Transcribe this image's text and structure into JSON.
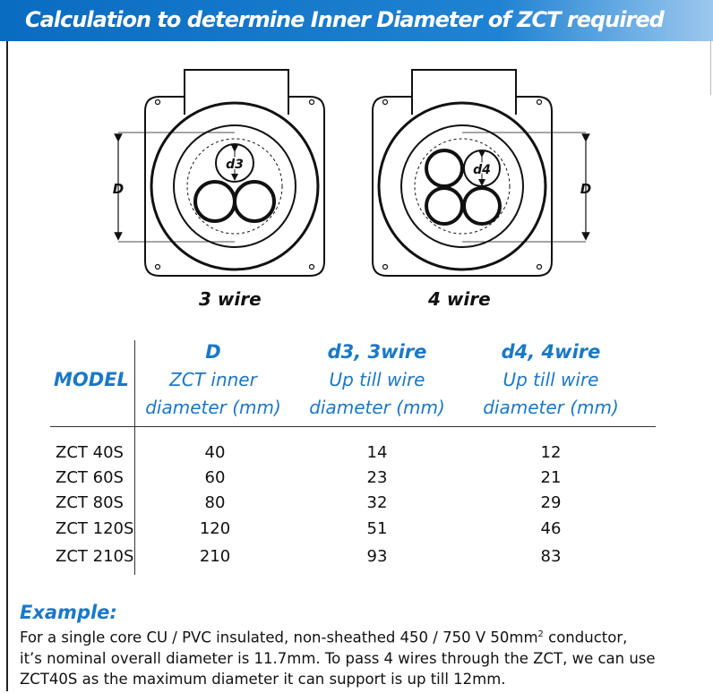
{
  "header": {
    "title": "Calculation to determine Inner Diameter of ZCT required"
  },
  "diagrams": [
    {
      "caption": "3 wire",
      "dim_label": "D",
      "wire_label": "d3"
    },
    {
      "caption": "4 wire",
      "dim_label": "D",
      "wire_label": "d4"
    }
  ],
  "table": {
    "model_header": "MODEL",
    "columns": [
      {
        "title": "D",
        "line1": "ZCT inner",
        "line2": "diameter (mm)"
      },
      {
        "title": "d3, 3wire",
        "line1": "Up till wire",
        "line2": "diameter (mm)"
      },
      {
        "title": "d4, 4wire",
        "line1": "Up till wire",
        "line2": "diameter (mm)"
      }
    ],
    "rows": [
      {
        "model": "ZCT 40S",
        "d": "40",
        "d3": "14",
        "d4": "12"
      },
      {
        "model": "ZCT 60S",
        "d": "60",
        "d3": "23",
        "d4": "21"
      },
      {
        "model": "ZCT 80S",
        "d": "80",
        "d3": "32",
        "d4": "29"
      },
      {
        "model": "ZCT 120S",
        "d": "120",
        "d3": "51",
        "d4": "46"
      },
      {
        "model": "ZCT 210S",
        "d": "210",
        "d3": "93",
        "d4": "83"
      }
    ]
  },
  "example": {
    "title": "Example:",
    "line1_pre": "For a single core CU / PVC insulated, non-sheathed 450 / 750 V 50mm",
    "line1_sup": "2",
    "line1_post": " conductor,",
    "line2": "it’s nominal overall diameter is 11.7mm. To pass 4 wires through the ZCT, we can use",
    "line3": "ZCT40S as the maximum diameter it can support is up till 12mm."
  },
  "colors": {
    "accent": "#1a78c8",
    "header_bg": "#0a6cc0"
  }
}
